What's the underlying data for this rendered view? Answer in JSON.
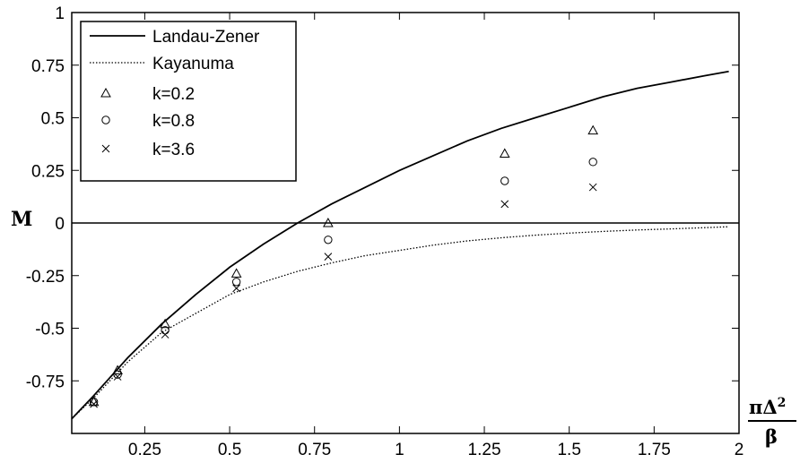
{
  "chart_data": {
    "type": "line",
    "title": "",
    "ylabel": "M",
    "xlabel": {
      "numerator_main": "πΔ",
      "numerator_sup": "2",
      "denominator": "β"
    },
    "xlim": [
      0.035,
      2.0
    ],
    "ylim": [
      -1,
      1
    ],
    "x_ticks": [
      0.25,
      0.5,
      0.75,
      1,
      1.25,
      1.5,
      1.75,
      2
    ],
    "x_tick_labels": [
      "0.25",
      "0.5",
      "0.75",
      "1",
      "1.25",
      "1.5",
      "1.75",
      "2"
    ],
    "y_ticks": [
      1,
      0.75,
      0.5,
      0.25,
      0,
      -0.25,
      -0.5,
      -0.75
    ],
    "y_tick_labels": [
      "1",
      "0.75",
      "0.5",
      "0.25",
      "0",
      "-0.25",
      "-0.5",
      "-0.75"
    ],
    "grid": false,
    "zero_line": true,
    "legend": {
      "position": "top-left"
    },
    "series": [
      {
        "name": "Landau-Zener",
        "kind": "line",
        "style": "solid",
        "x": [
          0.035,
          0.1,
          0.2,
          0.3,
          0.4,
          0.5,
          0.6,
          0.7,
          0.8,
          0.9,
          1.0,
          1.1,
          1.2,
          1.3,
          1.4,
          1.5,
          1.6,
          1.7,
          1.8,
          1.9,
          1.97
        ],
        "y": [
          -0.93,
          -0.82,
          -0.64,
          -0.48,
          -0.34,
          -0.21,
          -0.1,
          0.0,
          0.09,
          0.17,
          0.25,
          0.32,
          0.39,
          0.45,
          0.5,
          0.55,
          0.6,
          0.64,
          0.67,
          0.7,
          0.72
        ]
      },
      {
        "name": "Kayanuma",
        "kind": "line",
        "style": "dotted",
        "x": [
          0.035,
          0.1,
          0.2,
          0.3,
          0.4,
          0.5,
          0.6,
          0.7,
          0.8,
          0.9,
          1.0,
          1.1,
          1.2,
          1.3,
          1.4,
          1.5,
          1.6,
          1.7,
          1.8,
          1.9,
          1.97
        ],
        "y": [
          -0.93,
          -0.83,
          -0.66,
          -0.52,
          -0.43,
          -0.34,
          -0.28,
          -0.23,
          -0.19,
          -0.155,
          -0.13,
          -0.105,
          -0.085,
          -0.07,
          -0.058,
          -0.048,
          -0.04,
          -0.033,
          -0.028,
          -0.022,
          -0.018
        ]
      },
      {
        "name": "k=0.2",
        "kind": "scatter",
        "marker": "triangle",
        "x": [
          0.1,
          0.17,
          0.31,
          0.52,
          0.79,
          1.31,
          1.57
        ],
        "y": [
          -0.85,
          -0.7,
          -0.48,
          -0.24,
          0.0,
          0.33,
          0.44
        ]
      },
      {
        "name": "k=0.8",
        "kind": "scatter",
        "marker": "circle",
        "x": [
          0.1,
          0.17,
          0.31,
          0.52,
          0.79,
          1.31,
          1.57
        ],
        "y": [
          -0.85,
          -0.72,
          -0.51,
          -0.28,
          -0.08,
          0.2,
          0.29
        ]
      },
      {
        "name": "k=3.6",
        "kind": "scatter",
        "marker": "x",
        "x": [
          0.1,
          0.17,
          0.31,
          0.52,
          0.79,
          1.31,
          1.57
        ],
        "y": [
          -0.86,
          -0.73,
          -0.53,
          -0.31,
          -0.16,
          0.09,
          0.17
        ]
      }
    ]
  }
}
